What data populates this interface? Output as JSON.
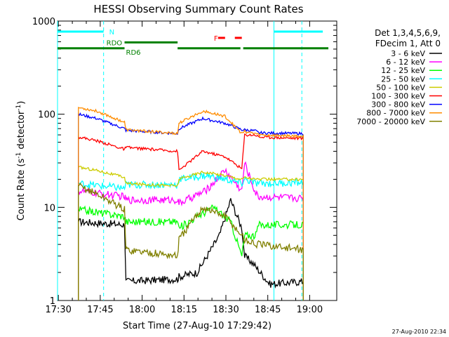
{
  "chart_data": {
    "type": "line",
    "title": "HESSI Observing Summary Count Rates",
    "xlabel": "Start Time (27-Aug-10 17:29:42)",
    "ylabel_parts": [
      "Count Rate (s",
      "-1",
      " detector",
      "-1",
      ")"
    ],
    "yscale": "log",
    "ylim": [
      1,
      1000
    ],
    "xlim_minutes": [
      0,
      100
    ],
    "x_ticks": [
      {
        "t": 0.3,
        "label": "17:30"
      },
      {
        "t": 15.3,
        "label": "17:45"
      },
      {
        "t": 30.3,
        "label": "18:00"
      },
      {
        "t": 45.3,
        "label": "18:15"
      },
      {
        "t": 60.3,
        "label": "18:30"
      },
      {
        "t": 75.3,
        "label": "18:45"
      },
      {
        "t": 90.3,
        "label": "19:00"
      }
    ],
    "y_ticks": [
      {
        "v": 1,
        "label": "1"
      },
      {
        "v": 10,
        "label": "10"
      },
      {
        "v": 100,
        "label": "100"
      },
      {
        "v": 1000,
        "label": "1000"
      }
    ],
    "legend_header": [
      "Det 1,3,4,5,6,9,",
      "FDecim 1, Att 0"
    ],
    "series": [
      {
        "name": "3 - 6 keV",
        "color": "#000000",
        "values": [
          [
            7.5,
            7.0
          ],
          [
            24,
            6.5
          ],
          [
            24.5,
            1.6
          ],
          [
            43,
            1.7
          ],
          [
            43.5,
            1.8
          ],
          [
            50,
            2.0
          ],
          [
            58,
            5.0
          ],
          [
            62,
            12.0
          ],
          [
            66,
            6.0
          ],
          [
            67,
            3.0
          ],
          [
            70,
            2.5
          ],
          [
            76,
            1.5
          ],
          [
            88,
            1.6
          ]
        ]
      },
      {
        "name": "6 - 12 keV",
        "color": "#ff00ff",
        "values": [
          [
            7.5,
            15.0
          ],
          [
            24,
            13.0
          ],
          [
            24.5,
            12.0
          ],
          [
            43,
            12.0
          ],
          [
            43.5,
            11.0
          ],
          [
            53,
            15.0
          ],
          [
            60,
            25.0
          ],
          [
            66,
            15.0
          ],
          [
            67,
            30.0
          ],
          [
            71,
            14.0
          ],
          [
            72,
            13.0
          ],
          [
            88,
            12.5
          ]
        ]
      },
      {
        "name": "12 - 25 keV",
        "color": "#00ff00",
        "values": [
          [
            7.5,
            9.5
          ],
          [
            24,
            8.0
          ],
          [
            24.5,
            7.0
          ],
          [
            43,
            7.0
          ],
          [
            43.5,
            6.0
          ],
          [
            50,
            8.0
          ],
          [
            56,
            10.0
          ],
          [
            62,
            7.0
          ],
          [
            66,
            3.0
          ],
          [
            67,
            5.0
          ],
          [
            71,
            5.0
          ],
          [
            72,
            6.5
          ],
          [
            88,
            6.5
          ]
        ]
      },
      {
        "name": "25 - 50 keV",
        "color": "#00ffff",
        "values": [
          [
            7.5,
            18.0
          ],
          [
            24,
            16.0
          ],
          [
            24.5,
            17.5
          ],
          [
            43,
            17.5
          ],
          [
            43.5,
            20.0
          ],
          [
            53,
            22.0
          ],
          [
            60,
            20.0
          ],
          [
            66,
            18.0
          ],
          [
            67,
            20.0
          ],
          [
            71,
            18.0
          ],
          [
            72,
            18.0
          ],
          [
            88,
            18.5
          ]
        ]
      },
      {
        "name": "50 - 100 keV",
        "color": "#cccc00",
        "values": [
          [
            7.5,
            27.0
          ],
          [
            14,
            25.0
          ],
          [
            24,
            21.0
          ],
          [
            24.5,
            18.0
          ],
          [
            43,
            17.0
          ],
          [
            43.5,
            20.0
          ],
          [
            52,
            24.0
          ],
          [
            60,
            22.0
          ],
          [
            66,
            20.0
          ],
          [
            67,
            21.0
          ],
          [
            71,
            20.0
          ],
          [
            72,
            20.0
          ],
          [
            88,
            20.0
          ]
        ]
      },
      {
        "name": "100 - 300 keV",
        "color": "#ff0000",
        "values": [
          [
            7.5,
            57.0
          ],
          [
            14,
            52.0
          ],
          [
            24,
            42.0
          ],
          [
            24.5,
            44.0
          ],
          [
            43,
            40.0
          ],
          [
            43.5,
            25.0
          ],
          [
            52,
            40.0
          ],
          [
            60,
            35.0
          ],
          [
            66,
            26.0
          ],
          [
            67,
            60.0
          ],
          [
            71,
            60.0
          ],
          [
            72,
            57.0
          ],
          [
            88,
            55.0
          ]
        ]
      },
      {
        "name": "300 - 800 keV",
        "color": "#0000ff",
        "values": [
          [
            7.5,
            100.0
          ],
          [
            14,
            90.0
          ],
          [
            24,
            70.0
          ],
          [
            24.5,
            67.0
          ],
          [
            43,
            62.0
          ],
          [
            43.5,
            70.0
          ],
          [
            52,
            90.0
          ],
          [
            60,
            80.0
          ],
          [
            66,
            68.0
          ],
          [
            67,
            68.0
          ],
          [
            71,
            66.0
          ],
          [
            72,
            63.0
          ],
          [
            88,
            62.0
          ]
        ]
      },
      {
        "name": "800 - 7000 keV",
        "color": "#ff8c00",
        "values": [
          [
            7.5,
            118.0
          ],
          [
            14,
            108.0
          ],
          [
            24,
            82.0
          ],
          [
            24.5,
            68.0
          ],
          [
            43,
            62.0
          ],
          [
            43.5,
            80.0
          ],
          [
            52,
            108.0
          ],
          [
            60,
            95.0
          ],
          [
            66,
            62.0
          ],
          [
            67,
            65.0
          ],
          [
            71,
            62.0
          ],
          [
            72,
            60.0
          ],
          [
            88,
            58.0
          ]
        ]
      },
      {
        "name": "7000 - 20000 keV",
        "color": "#808000",
        "values": [
          [
            7.5,
            17.0
          ],
          [
            14,
            14.0
          ],
          [
            24,
            9.5
          ],
          [
            24.5,
            3.5
          ],
          [
            43,
            3.0
          ],
          [
            43.5,
            4.5
          ],
          [
            52,
            10.0
          ],
          [
            60,
            8.0
          ],
          [
            66,
            5.0
          ],
          [
            67,
            4.5
          ],
          [
            71,
            4.0
          ],
          [
            72,
            4.0
          ],
          [
            88,
            3.5
          ]
        ]
      }
    ],
    "dashed_vlines_minutes": [
      16.5,
      87.5
    ],
    "annotations": [
      {
        "label": "N",
        "color": "#00ffff",
        "kind": "bar",
        "segments": [
          [
            0,
            16.5
          ],
          [
            77.5,
            95
          ]
        ],
        "level": 770
      },
      {
        "label": "RDO",
        "color": "#008000",
        "kind": "bar",
        "segments": [
          [
            24,
            43
          ]
        ],
        "level": 590
      },
      {
        "label": "RD6",
        "color": "#008000",
        "kind": "bar",
        "segments": [
          [
            0,
            24
          ],
          [
            43,
            65.5
          ],
          [
            66.5,
            97
          ]
        ],
        "level": 510
      },
      {
        "label": "F",
        "color": "#ff0000",
        "kind": "bar",
        "segments": [
          [
            57.5,
            60
          ],
          [
            63.5,
            66
          ]
        ],
        "level": 660
      }
    ],
    "cyan_gap_minutes": [
      [
        0,
        0.5
      ],
      [
        77.5,
        78
      ]
    ]
  },
  "footer": {
    "timestamp": "27-Aug-2010 22:34"
  }
}
